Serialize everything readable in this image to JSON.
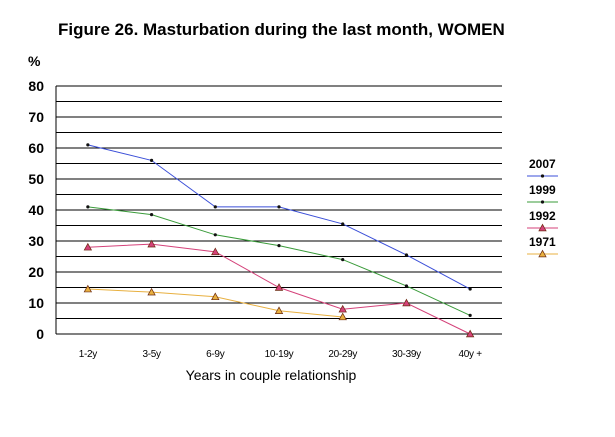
{
  "chart_data": {
    "type": "line",
    "title": "Figure 26. Masturbation during the last month, WOMEN",
    "ylabel": "%",
    "xlabel": "Years in couple relationship",
    "categories": [
      "1-2y",
      "3-5y",
      "6-9y",
      "10-19y",
      "20-29y",
      "30-39y",
      "40y +"
    ],
    "ylim": [
      0,
      80
    ],
    "yticks": [
      "0",
      "10",
      "20",
      "30",
      "40",
      "50",
      "60",
      "70",
      "80"
    ],
    "grid": true,
    "legend_position": "right",
    "series": [
      {
        "name": "2007",
        "color": "#3b4fd8",
        "marker": "dot",
        "values": [
          61,
          56,
          41,
          41,
          35.5,
          25.5,
          14.5
        ]
      },
      {
        "name": "1999",
        "color": "#3a9b3a",
        "marker": "dot",
        "values": [
          41,
          38.5,
          32,
          28.5,
          24,
          15.5,
          6
        ]
      },
      {
        "name": "1992",
        "color": "#d4427a",
        "marker": "triangle",
        "values": [
          28,
          29,
          26.5,
          15,
          8,
          10,
          0
        ]
      },
      {
        "name": "1971",
        "color": "#e8b040",
        "marker": "triangle",
        "values": [
          14.5,
          13.5,
          12,
          7.5,
          5.5,
          null,
          null
        ]
      }
    ]
  }
}
